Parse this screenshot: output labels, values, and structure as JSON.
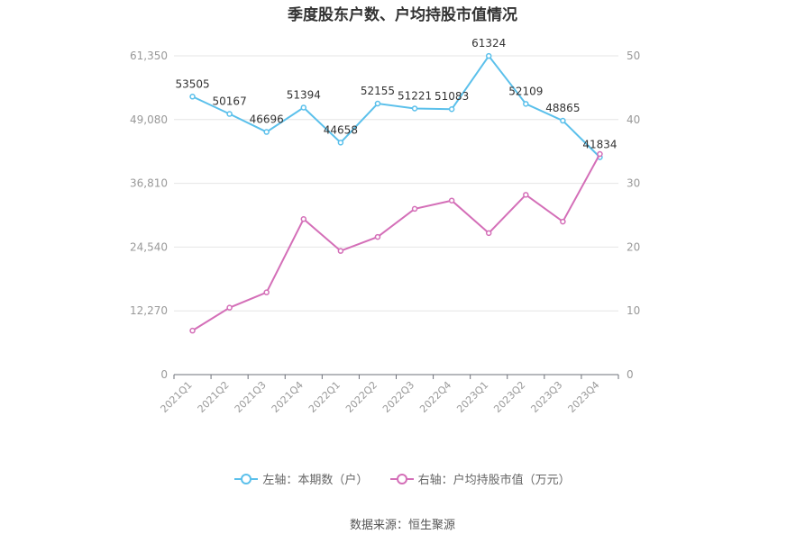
{
  "chart_data": {
    "type": "line",
    "title": "季度股东户数、户均持股市值情况",
    "categories": [
      "2021Q1",
      "2021Q2",
      "2021Q3",
      "2021Q4",
      "2022Q1",
      "2022Q2",
      "2022Q3",
      "2022Q4",
      "2023Q1",
      "2023Q2",
      "2023Q3",
      "2023Q4"
    ],
    "left_axis": {
      "ticks": [
        "0",
        "12,270",
        "24,540",
        "36,810",
        "49,080",
        "61,350"
      ],
      "ylim": [
        0,
        61350
      ]
    },
    "right_axis": {
      "ticks": [
        "0",
        "10",
        "20",
        "30",
        "40",
        "50"
      ],
      "ylim": [
        0,
        50
      ]
    },
    "series": [
      {
        "name": "左轴：本期数（户）",
        "axis": "left",
        "color": "#5bc0eb",
        "values": [
          53505,
          50167,
          46696,
          51394,
          44658,
          52155,
          51221,
          51083,
          61324,
          52109,
          48865,
          41834
        ],
        "labels": [
          "53505",
          "50167",
          "46696",
          "51394",
          "44658",
          "52155",
          "51221",
          "51083",
          "61324",
          "52109",
          "48865",
          "41834"
        ]
      },
      {
        "name": "右轴：户均持股市值（万元）",
        "axis": "right",
        "color": "#d46fb8",
        "values": [
          6.9,
          10.5,
          12.9,
          24.4,
          19.4,
          21.6,
          26.0,
          27.3,
          22.2,
          28.2,
          24.0,
          34.6
        ]
      }
    ],
    "grid": true,
    "legend_position": "bottom"
  },
  "source_text": "数据来源：恒生聚源"
}
